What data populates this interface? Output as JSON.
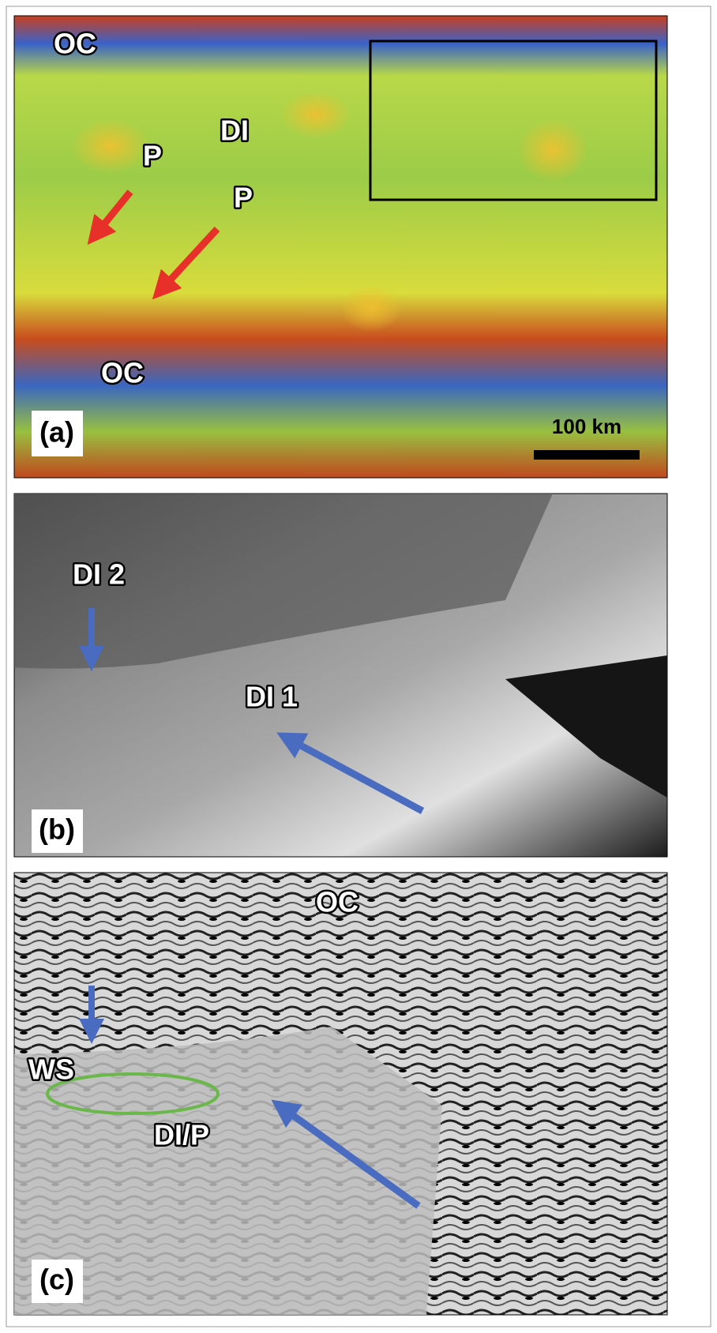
{
  "panels": [
    {
      "label": "(a)",
      "annotations": [
        "OC",
        "DI",
        "P",
        "P",
        "OC"
      ],
      "scale_bar": "100 km"
    },
    {
      "label": "(b)",
      "annotations": [
        "DI 2",
        "DI 1"
      ]
    },
    {
      "label": "(c)",
      "annotations": [
        "OC",
        "WS",
        "DI/P"
      ]
    }
  ]
}
